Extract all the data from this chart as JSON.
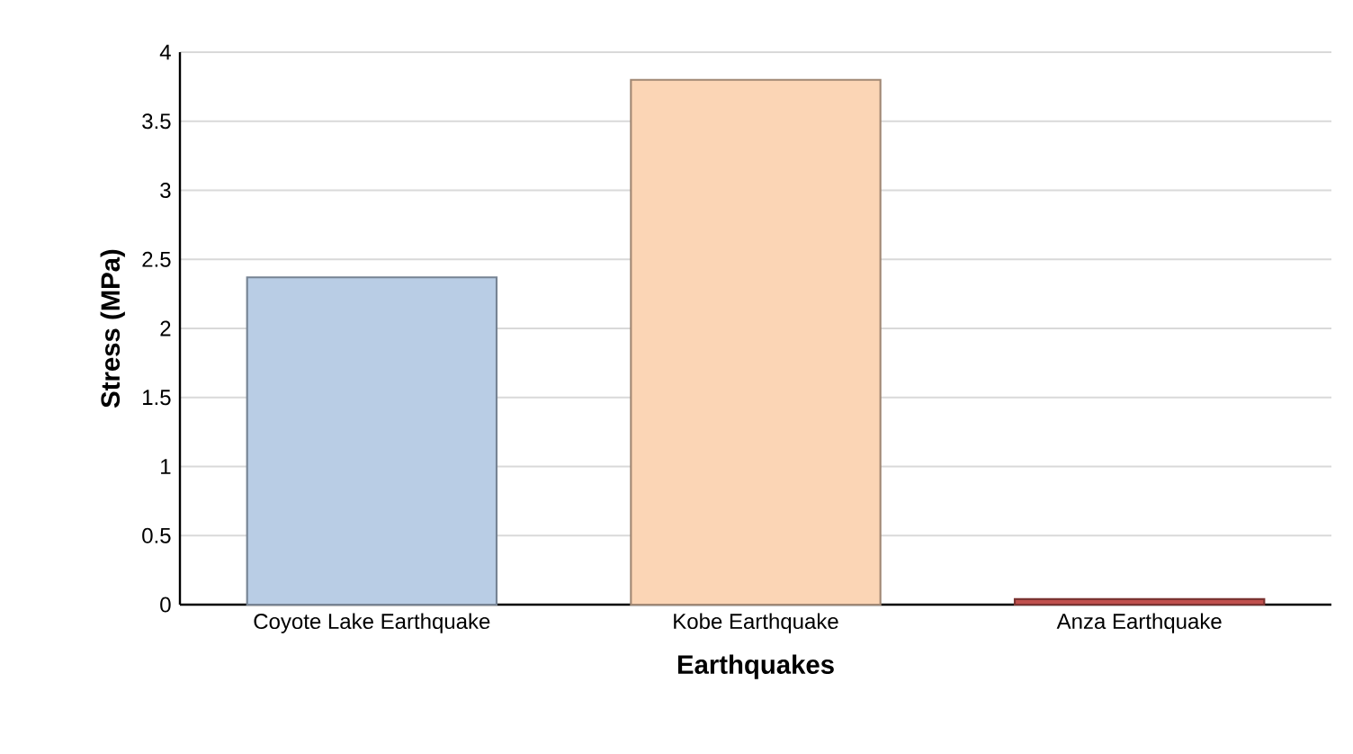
{
  "chart_data": {
    "type": "bar",
    "xlabel": "Earthquakes",
    "ylabel": "Stress (MPa)",
    "categories": [
      "Coyote Lake Earthquake",
      "Kobe Earthquake",
      "Anza Earthquake"
    ],
    "values": [
      2.37,
      3.8,
      0.04
    ],
    "colors": [
      "#b9cde5",
      "#fbd5b5",
      "#c0504d"
    ],
    "ylim": [
      0,
      4
    ],
    "yticks": [
      0,
      0.5,
      1,
      1.5,
      2,
      2.5,
      3,
      3.5,
      4
    ],
    "grid": "y"
  }
}
